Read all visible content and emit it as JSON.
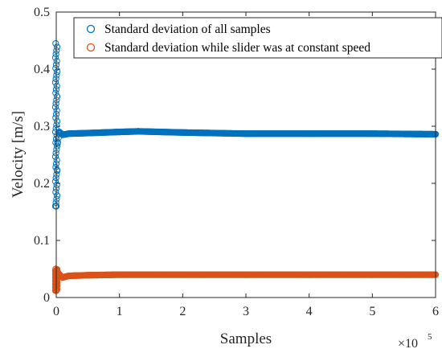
{
  "chart_data": {
    "type": "scatter",
    "title": "",
    "xlabel": "Samples",
    "ylabel": "Velocity [m/s]",
    "xlim": [
      0,
      600000
    ],
    "ylim": [
      0,
      0.5
    ],
    "x_ticks": [
      0,
      100000,
      200000,
      300000,
      400000,
      500000,
      600000
    ],
    "x_tick_labels": [
      "0",
      "1",
      "2",
      "3",
      "4",
      "5",
      "6"
    ],
    "x_multiplier": {
      "base": "×10",
      "exponent": "5"
    },
    "y_ticks": [
      0,
      0.1,
      0.2,
      0.3,
      0.4,
      0.5
    ],
    "y_tick_labels": [
      "0",
      "0.1",
      "0.2",
      "0.3",
      "0.4",
      "0.5"
    ],
    "legend_position": "top-right",
    "grid": false,
    "marker": "open-circle",
    "series": [
      {
        "name": "Standard deviation of all samples",
        "color": "#0072BD",
        "x": [
          0,
          2000,
          5000,
          10000,
          20000,
          50000,
          100000,
          130000,
          200000,
          300000,
          400000,
          500000,
          600000
        ],
        "y": [
          0.16,
          0.27,
          0.29,
          0.285,
          0.287,
          0.288,
          0.29,
          0.291,
          0.289,
          0.287,
          0.287,
          0.287,
          0.286
        ],
        "initial_spike": {
          "x": 0,
          "y_min": 0.16,
          "y_max": 0.445
        }
      },
      {
        "name": "Standard deviation while slider was at constant speed",
        "color": "#D95319",
        "x": [
          0,
          2000,
          5000,
          10000,
          20000,
          50000,
          100000,
          200000,
          300000,
          400000,
          500000,
          600000
        ],
        "y": [
          0.012,
          0.045,
          0.04,
          0.035,
          0.038,
          0.039,
          0.04,
          0.04,
          0.04,
          0.04,
          0.04,
          0.04
        ],
        "initial_spike": {
          "x": 0,
          "y_min": 0.012,
          "y_max": 0.05
        }
      }
    ]
  }
}
